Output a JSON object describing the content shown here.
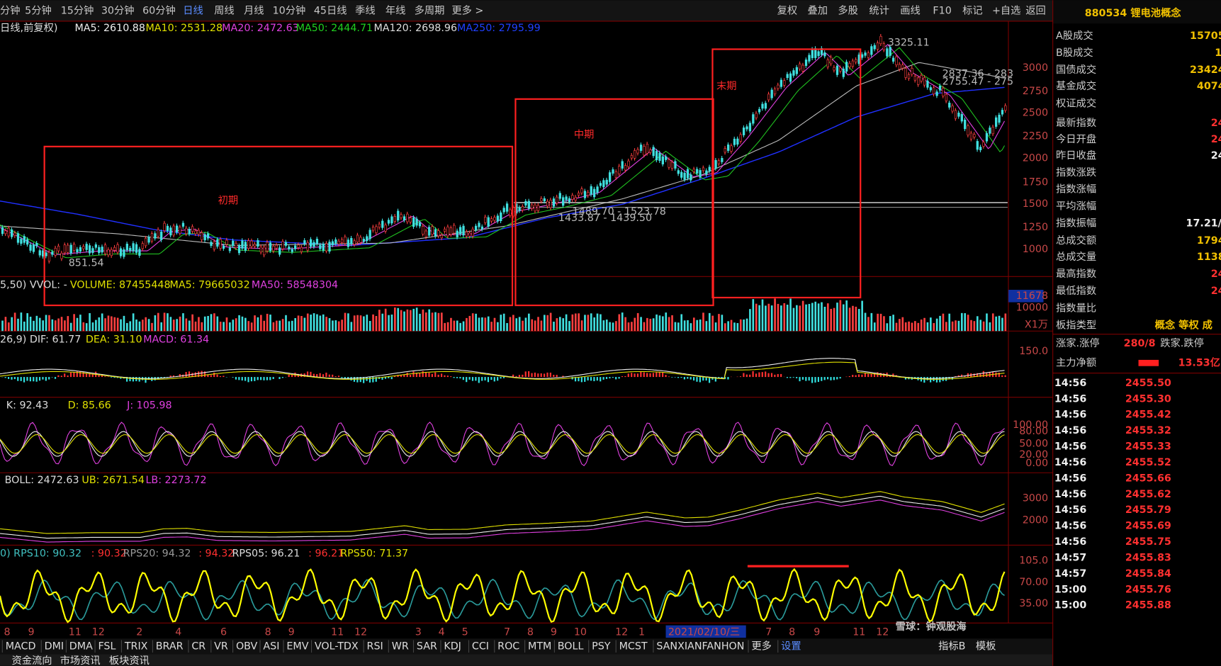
{
  "toolbar": {
    "periods": [
      "分钟",
      "5分钟",
      "15分钟",
      "30分钟",
      "60分钟",
      "日线",
      "周线",
      "月线",
      "10分钟",
      "45日线",
      "季线",
      "年线",
      "多周期",
      "更多 >"
    ],
    "tools": [
      "复权",
      "叠加",
      "多股",
      "统计",
      "画线",
      "F10",
      "标记",
      "+自选",
      "返回"
    ]
  },
  "main_panel": {
    "legend": [
      "日线,前复权)",
      "MA5: 2610.88",
      "MA10: 2531.28",
      "MA20: 2472.63",
      "MA50: 2444.71",
      "MA120: 2698.96",
      "MA250: 2795.99"
    ],
    "axis": [
      "3000",
      "2750",
      "2500",
      "2250",
      "2000",
      "1750",
      "1500",
      "1250",
      "1000"
    ],
    "phases": [
      "初期",
      "中期",
      "末期"
    ],
    "price_notes": [
      "3325.11",
      "851.54",
      "1489.70 - 1523.78",
      "1433.87 - 1439.50",
      "2837.36 - 283",
      "2755.47 - 275"
    ]
  },
  "volume_panel": {
    "legend": [
      "5,50) VVOL: -",
      "VOLUME: 87455448",
      "MA5: 79665032",
      "MA50: 58548304"
    ],
    "axis": [
      "11678",
      "10000",
      "X1万"
    ]
  },
  "macd_panel": {
    "legend": [
      "26,9) DIF: 61.77",
      "DEA: 31.10",
      "MACD: 61.34"
    ],
    "axis": [
      "150.0"
    ]
  },
  "kdj_panel": {
    "legend": [
      "K: 92.43",
      "D: 85.66",
      "J: 105.98"
    ],
    "axis": [
      "100.00",
      "80.00",
      "50.00",
      "20.00",
      "0.00"
    ]
  },
  "boll_panel": {
    "legend": [
      "BOLL: 2472.63",
      "UB: 2671.54",
      "LB: 2273.72"
    ],
    "axis": [
      "3000",
      "2000"
    ]
  },
  "rps_panel": {
    "legend": [
      "0) RPS10: 90.32",
      ": 90.32",
      "RPS20: 94.32",
      ": 94.32",
      "RPS05: 96.21",
      ": 96.21",
      "RPS50: 71.37"
    ],
    "axis": [
      "105.0",
      "70.00",
      "35.00"
    ]
  },
  "x_axis": {
    "dates": [
      "8",
      "9",
      "11",
      "12",
      "2",
      "4",
      "6",
      "8",
      "9",
      "11",
      "12",
      "3",
      "4",
      "5",
      "7",
      "8",
      "9",
      "10",
      "12",
      "1",
      "2021/02/10/三",
      "7",
      "8",
      "9",
      "11",
      "12"
    ]
  },
  "indicator_tabs": {
    "left": [
      "MACD",
      "DMI",
      "DMA",
      "FSL",
      "TRIX",
      "BRAR",
      "CR",
      "VR",
      "OBV",
      "ASI",
      "EMV",
      "VOL-TDX",
      "RSI",
      "WR",
      "SAR",
      "KDJ",
      "CCI",
      "ROC",
      "MTM",
      "BOLL",
      "PSY",
      "MCST",
      "SANXIANFANHON",
      "更多",
      "设置"
    ],
    "right": [
      "指标B",
      "模板"
    ]
  },
  "bottom_tabs": [
    "资金流向",
    "市场资讯",
    "板块资讯"
  ],
  "quote_panel": {
    "title": "880534 锂电池概念",
    "fields": [
      {
        "label": "A股成交",
        "value": "15705"
      },
      {
        "label": "B股成交",
        "value": "1"
      },
      {
        "label": "国债成交",
        "value": "23424"
      },
      {
        "label": "基金成交",
        "value": "4074"
      },
      {
        "label": "权证成交"
      },
      {
        "label": "最新指数",
        "value": "24"
      },
      {
        "label": "今日开盘",
        "value": "24"
      },
      {
        "label": "昨日收盘",
        "value": "24"
      },
      {
        "label": "指数涨跌"
      },
      {
        "label": "指数涨幅"
      },
      {
        "label": "平均涨幅"
      },
      {
        "label": "指数振幅",
        "value": "17.21/"
      },
      {
        "label": "总成交额",
        "value": "1794"
      },
      {
        "label": "总成交量",
        "value": "1138"
      },
      {
        "label": "最高指数",
        "value": "24"
      },
      {
        "label": "最低指数",
        "value": "24"
      },
      {
        "label": "指数量比"
      },
      {
        "label": "板指类型",
        "value": "概念 等权 成"
      }
    ],
    "breadth": {
      "label": "涨家.涨停",
      "value": "280/8",
      "label2": "跌家.跌停"
    },
    "net_flow": {
      "label": "主力净额",
      "value": "13.53亿"
    },
    "ticks": [
      {
        "time": "14:56",
        "price": "2455.50"
      },
      {
        "time": "14:56",
        "price": "2455.30"
      },
      {
        "time": "14:56",
        "price": "2455.42"
      },
      {
        "time": "14:56",
        "price": "2455.32"
      },
      {
        "time": "14:56",
        "price": "2455.33"
      },
      {
        "time": "14:56",
        "price": "2455.52"
      },
      {
        "time": "14:56",
        "price": "2455.66"
      },
      {
        "time": "14:56",
        "price": "2455.62"
      },
      {
        "time": "14:56",
        "price": "2455.79"
      },
      {
        "time": "14:56",
        "price": "2455.69"
      },
      {
        "time": "14:56",
        "price": "2455.75"
      },
      {
        "time": "14:57",
        "price": "2455.83"
      },
      {
        "time": "14:57",
        "price": "2455.84"
      },
      {
        "time": "15:00",
        "price": "2455.76"
      },
      {
        "time": "15:00",
        "price": "2455.88"
      }
    ]
  },
  "watermark": "雪球：钟观股海"
}
